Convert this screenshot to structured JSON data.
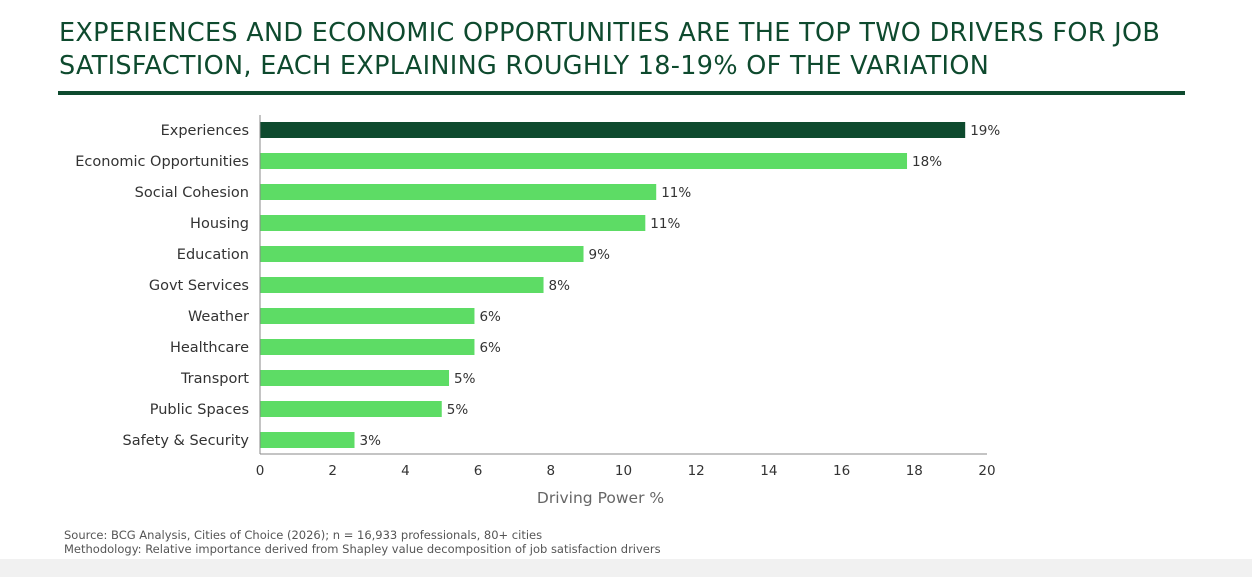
{
  "title": "EXPERIENCES AND ECONOMIC OPPORTUNITIES ARE THE TOP TWO DRIVERS FOR JOB SATISFACTION, EACH EXPLAINING ROUGHLY 18-19% OF THE VARIATION",
  "colors": {
    "title": "#0e4a2e",
    "highlight_bar": "#0e4a2e",
    "bar": "#5ddc65",
    "axis": "#888888",
    "text": "#333333"
  },
  "chart_data": {
    "type": "bar",
    "orientation": "horizontal",
    "categories": [
      "Experiences",
      "Economic Opportunities",
      "Social Cohesion",
      "Housing",
      "Education",
      "Govt Services",
      "Weather",
      "Healthcare",
      "Transport",
      "Public Spaces",
      "Safety & Security"
    ],
    "values": [
      19.4,
      17.8,
      10.9,
      10.6,
      8.9,
      7.8,
      5.9,
      5.9,
      5.2,
      5.0,
      2.6
    ],
    "data_labels": [
      "19%",
      "18%",
      "11%",
      "11%",
      "9%",
      "8%",
      "6%",
      "6%",
      "5%",
      "5%",
      "3%"
    ],
    "highlight_index": 0,
    "xlabel": "Driving Power %",
    "ylabel": "",
    "xlim": [
      0,
      20
    ],
    "xticks": [
      0,
      2,
      4,
      6,
      8,
      10,
      12,
      14,
      16,
      18,
      20
    ],
    "grid": false,
    "legend": "none"
  },
  "footer": {
    "source": "Source: BCG Analysis, Cities of Choice (2026); n = 16,933 professionals, 80+ cities",
    "methodology": "Methodology: Relative importance derived from Shapley value decomposition of job satisfaction drivers"
  }
}
